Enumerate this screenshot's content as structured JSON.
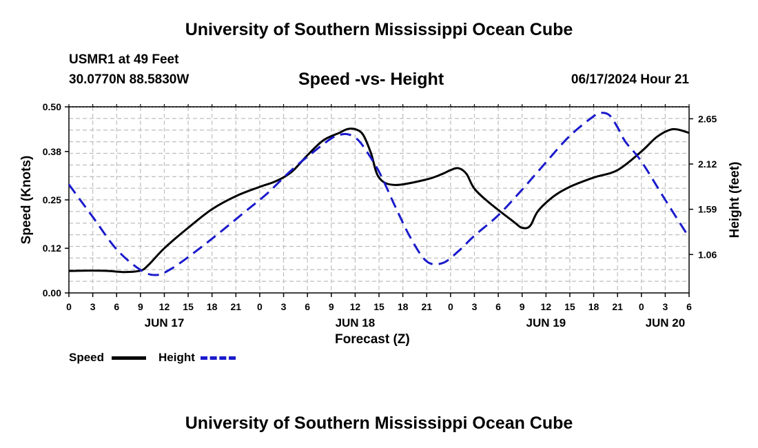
{
  "page_title": "University of Southern Mississippi Ocean Cube",
  "footer_title": "University of Southern Mississippi Ocean Cube",
  "station": "USMR1 at 49 Feet",
  "coords": "30.0770N  88.5830W",
  "datetime": "06/17/2024 Hour 21",
  "colors": {
    "speed": "#000000",
    "height": "#1a1acc",
    "grid": "#bdbdbd"
  },
  "chart_data": {
    "type": "line",
    "title": "Speed -vs- Height",
    "xlabel": "Forecast (Z)",
    "ylabel": "Speed (Knots)",
    "y2label": "Height (feet)",
    "x_unit": "hours since 00Z Jun 17",
    "xlim": [
      0,
      78
    ],
    "ylim": [
      0,
      0.5
    ],
    "y2lim": [
      0.61,
      2.79
    ],
    "x_ticks": [
      0,
      3,
      6,
      9,
      12,
      15,
      18,
      21,
      24,
      27,
      30,
      33,
      36,
      39,
      42,
      45,
      48,
      51,
      54,
      57,
      60,
      63,
      66,
      69,
      72,
      75,
      78
    ],
    "x_tick_labels": [
      "0",
      "3",
      "6",
      "9",
      "12",
      "15",
      "18",
      "21",
      "0",
      "3",
      "6",
      "9",
      "12",
      "15",
      "18",
      "21",
      "0",
      "3",
      "6",
      "9",
      "12",
      "15",
      "18",
      "21",
      "0",
      "3",
      "6"
    ],
    "date_labels": [
      {
        "hour": 12,
        "label": "JUN 17"
      },
      {
        "hour": 36,
        "label": "JUN 18"
      },
      {
        "hour": 60,
        "label": "JUN 19"
      },
      {
        "hour": 75,
        "label": "JUN 20"
      }
    ],
    "y_ticks": [
      0.0,
      0.12,
      0.25,
      0.38,
      0.5
    ],
    "y_tick_labels": [
      "0.00",
      "0.12",
      "0.25",
      "0.38",
      "0.50"
    ],
    "y2_ticks": [
      1.06,
      1.59,
      2.12,
      2.65
    ],
    "y2_tick_labels": [
      "1.06",
      "1.59",
      "2.12",
      "2.65"
    ],
    "series": [
      {
        "name": "Speed",
        "axis": "left",
        "style": "solid",
        "x": [
          0,
          3,
          5,
          7,
          9,
          10,
          12,
          15,
          18,
          21,
          24,
          26,
          28,
          30,
          32,
          34,
          35,
          36,
          37,
          38,
          39,
          41,
          45,
          47,
          48,
          49,
          50,
          51,
          53,
          56,
          57,
          58,
          59,
          61,
          63,
          66,
          69,
          72,
          74,
          76,
          78
        ],
        "values": [
          0.059,
          0.06,
          0.059,
          0.056,
          0.06,
          0.075,
          0.12,
          0.175,
          0.225,
          0.26,
          0.285,
          0.3,
          0.325,
          0.37,
          0.41,
          0.43,
          0.44,
          0.44,
          0.425,
          0.375,
          0.31,
          0.29,
          0.305,
          0.32,
          0.33,
          0.335,
          0.32,
          0.28,
          0.24,
          0.19,
          0.175,
          0.18,
          0.22,
          0.26,
          0.285,
          0.31,
          0.33,
          0.38,
          0.42,
          0.44,
          0.43
        ]
      },
      {
        "name": "Height",
        "axis": "right",
        "style": "dashed",
        "x": [
          0,
          3,
          6,
          9,
          11,
          13,
          16,
          19,
          22,
          25,
          28,
          31,
          33,
          34,
          35,
          36,
          37,
          39,
          41,
          43,
          45,
          47,
          49,
          51,
          54,
          57,
          60,
          63,
          66,
          67,
          68,
          69,
          70,
          72,
          75,
          78
        ],
        "values": [
          1.88,
          1.5,
          1.12,
          0.88,
          0.82,
          0.9,
          1.1,
          1.32,
          1.55,
          1.78,
          2.05,
          2.28,
          2.42,
          2.46,
          2.47,
          2.43,
          2.33,
          2.03,
          1.63,
          1.25,
          0.98,
          0.96,
          1.1,
          1.28,
          1.52,
          1.82,
          2.14,
          2.45,
          2.68,
          2.72,
          2.69,
          2.55,
          2.38,
          2.15,
          1.7,
          1.26
        ]
      }
    ],
    "legend": {
      "placement": "bottom-left",
      "items": [
        "Speed",
        "Height"
      ]
    }
  }
}
